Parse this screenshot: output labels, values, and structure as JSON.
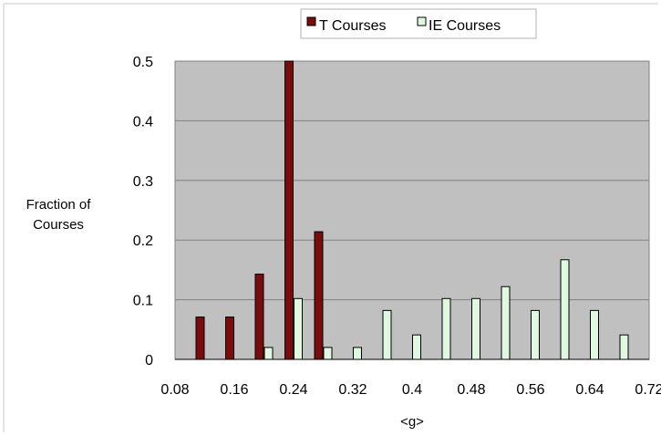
{
  "chart_data": {
    "type": "bar",
    "title": "",
    "xlabel": "<g>",
    "ylabel_lines": [
      "Fraction of",
      "Courses"
    ],
    "x_ticks": [
      "0.08",
      "0.16",
      "0.24",
      "0.32",
      "0.4",
      "0.48",
      "0.56",
      "0.64",
      "0.72"
    ],
    "y_ticks": [
      "0",
      "0.1",
      "0.2",
      "0.3",
      "0.4",
      "0.5"
    ],
    "xlim": [
      0.08,
      0.72
    ],
    "ylim": [
      0,
      0.5
    ],
    "grid": true,
    "plot_background": "#c0c0c0",
    "legend": {
      "placement": "top-center",
      "entries": [
        "T Courses",
        "IE Courses"
      ]
    },
    "series": [
      {
        "name": "T Courses",
        "color": "#7a0c0c",
        "x": [
          0.12,
          0.16,
          0.2,
          0.24,
          0.28
        ],
        "values": [
          0.071,
          0.071,
          0.143,
          0.5,
          0.214
        ]
      },
      {
        "name": "IE Courses",
        "color": "#e0f8e0",
        "x": [
          0.2,
          0.24,
          0.28,
          0.32,
          0.36,
          0.4,
          0.44,
          0.48,
          0.52,
          0.56,
          0.6,
          0.64,
          0.68
        ],
        "values": [
          0.02,
          0.102,
          0.02,
          0.02,
          0.082,
          0.041,
          0.102,
          0.102,
          0.122,
          0.082,
          0.167,
          0.082,
          0.041
        ]
      }
    ]
  }
}
